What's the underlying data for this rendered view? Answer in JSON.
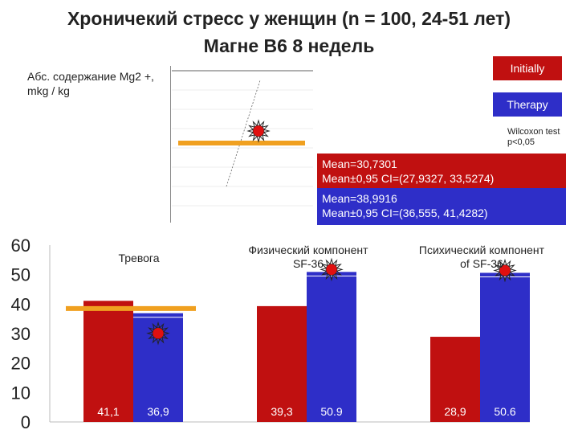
{
  "header": {
    "title_line1": "Хроничекий стресс у женщин (n = 100, 24-51 лет)",
    "title_line2": "Магне В6 8 недель"
  },
  "mg_label_line1": "Абс. содержание Mg2 +,",
  "mg_label_line2": "mkg / kg",
  "legend": {
    "initially": "Initially",
    "therapy": "Therapy",
    "wilcoxon_line1": "Wilcoxon test",
    "wilcoxon_line2": "p<0,05"
  },
  "stats": {
    "initial_mean": "Mean=30,7301",
    "initial_ci": "Mean±0,95 CI=(27,9327, 33,5274)",
    "therapy_mean": "Mean=38,9916",
    "therapy_ci": "Mean±0,95 CI=(36,555, 41,4282)"
  },
  "colors": {
    "initially": "#c01010",
    "therapy": "#2e2ec8",
    "reference_line": "#f0a020"
  },
  "chart_data": {
    "type": "bar",
    "categories": [
      [
        "Тревога"
      ],
      [
        "Физический компонент",
        "SF-36"
      ],
      [
        "Психический компонент",
        "of SF-36"
      ]
    ],
    "series": [
      {
        "name": "Initially",
        "values": [
          41.1,
          39.3,
          28.9
        ],
        "labels": [
          "41,1",
          "39,3",
          "28,9"
        ]
      },
      {
        "name": "Therapy",
        "values": [
          36.9,
          50.9,
          50.6
        ],
        "labels": [
          "36,9",
          "50.9",
          "50.6"
        ]
      }
    ],
    "yticks": [
      "60",
      "50",
      "40",
      "30",
      "20",
      "10",
      "0"
    ],
    "ylim": [
      0,
      60
    ],
    "significance_markers": [
      0,
      1,
      2
    ],
    "reference_line_value": 38.5,
    "reference_line_category": 0
  }
}
